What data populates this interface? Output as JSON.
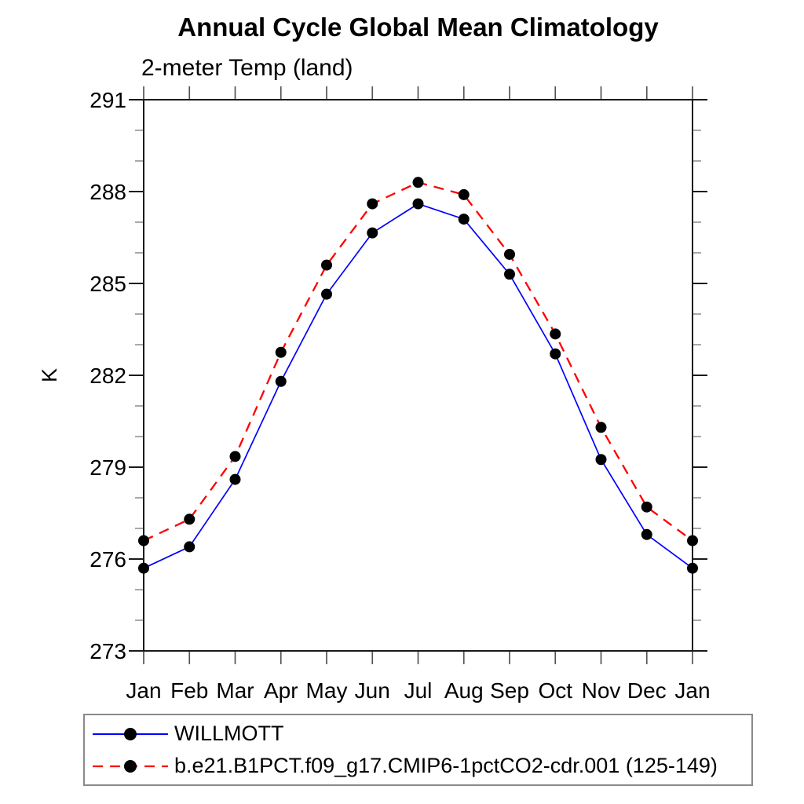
{
  "page": {
    "background": "#ffffff"
  },
  "chart_data": {
    "type": "line",
    "title": "Annual Cycle Global Mean Climatology",
    "subtitle": "2-meter Temp (land)",
    "xlabel": "",
    "ylabel": "K",
    "categories": [
      "Jan",
      "Feb",
      "Mar",
      "Apr",
      "May",
      "Jun",
      "Jul",
      "Aug",
      "Sep",
      "Oct",
      "Nov",
      "Dec",
      "Jan"
    ],
    "ylim": [
      273,
      291
    ],
    "yticks_major": [
      273,
      276,
      279,
      282,
      285,
      288,
      291
    ],
    "ytick_minor_step": 1,
    "grid": false,
    "legend_position": "bottom-left-box",
    "axis_color": "#1a1a1a",
    "minor_tick_color": "#8c8c8c",
    "marker_color": "#000000",
    "series": [
      {
        "name": "WILLMOTT",
        "color": "#0000ff",
        "line_style": "solid",
        "marker": "filled-circle",
        "values": [
          275.7,
          276.4,
          278.6,
          281.8,
          284.65,
          286.65,
          287.6,
          287.1,
          285.3,
          282.7,
          279.25,
          276.8,
          275.7
        ]
      },
      {
        "name": "b.e21.B1PCT.f09_g17.CMIP6-1pctCO2-cdr.001 (125-149)",
        "color": "#ff0000",
        "line_style": "dashed",
        "marker": "filled-circle",
        "values": [
          276.6,
          277.3,
          279.35,
          282.75,
          285.6,
          287.6,
          288.3,
          287.9,
          285.95,
          283.35,
          280.3,
          277.7,
          276.6
        ]
      }
    ]
  }
}
